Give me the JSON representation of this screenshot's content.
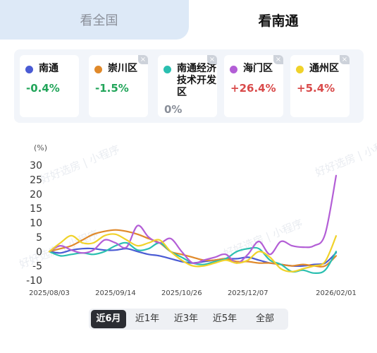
{
  "tabs": {
    "national": "看全国",
    "nantong": "看南通",
    "active": "nantong"
  },
  "cards": [
    {
      "name": "南通",
      "value": "-0.4%",
      "dot_color": "#4a5bd4",
      "value_color": "#22a55a",
      "closable": false
    },
    {
      "name": "崇川区",
      "value": "-1.5%",
      "dot_color": "#e0892a",
      "value_color": "#22a55a",
      "closable": true
    },
    {
      "name": "南通经济技术开发区",
      "value": "0%",
      "dot_color": "#2abfb0",
      "value_color": "#8a8f99",
      "closable": true
    },
    {
      "name": "海门区",
      "value": "+26.4%",
      "dot_color": "#b35ed6",
      "value_color": "#d94a4a",
      "closable": true
    },
    {
      "name": "通州区",
      "value": "+5.4%",
      "dot_color": "#f0d22a",
      "value_color": "#d94a4a",
      "closable": true
    }
  ],
  "close_glyph": "×",
  "watermark": "好好选房 | 小程序",
  "range_buttons": [
    "近6月",
    "近1年",
    "近3年",
    "近5年",
    "全部"
  ],
  "range_active": "近6月",
  "chart_data": {
    "type": "line",
    "ylabel": "(%)",
    "ylim": [
      -10,
      30
    ],
    "yticks": [
      30,
      25,
      20,
      15,
      10,
      5,
      0,
      -5,
      -10
    ],
    "x_tick_labels": [
      "2025/08/03",
      "2025/09/14",
      "2025/10/26",
      "2025/12/07",
      "2026/02/01"
    ],
    "x_tick_positions": [
      0,
      6,
      12,
      18,
      26
    ],
    "grid": false,
    "series": [
      {
        "name": "南通",
        "color": "#4a5bd4",
        "values": [
          0,
          -0.5,
          0.5,
          1,
          1,
          0.5,
          0.5,
          1,
          0,
          -1,
          -1.5,
          -2.5,
          -3.5,
          -4,
          -3.5,
          -3,
          -2.5,
          -2.5,
          -2,
          -3,
          -4,
          -4.5,
          -5,
          -5,
          -4.5,
          -4,
          -0.4
        ]
      },
      {
        "name": "崇川区",
        "color": "#e0892a",
        "values": [
          0,
          1,
          2,
          4,
          6,
          7,
          7.5,
          7,
          6,
          4.5,
          3,
          0,
          -1,
          -2,
          -3,
          -3,
          -2.5,
          -3.5,
          -3.5,
          -4,
          -4,
          -4.5,
          -5,
          -4.5,
          -5,
          -5,
          -1.5
        ]
      },
      {
        "name": "南通经济技术开发区",
        "color": "#2abfb0",
        "values": [
          0,
          -1.5,
          -1,
          -0.5,
          -1,
          0,
          2,
          3,
          0.5,
          1,
          3,
          0,
          -2,
          -4,
          -4.5,
          -3.5,
          -2.5,
          0,
          1,
          1,
          -3,
          -4.5,
          -7,
          -6.5,
          -7.5,
          -6.5,
          0
        ]
      },
      {
        "name": "海门区",
        "color": "#b35ed6",
        "values": [
          0,
          2,
          0.5,
          -0.5,
          0.5,
          4,
          3,
          1.5,
          9,
          5,
          3,
          4.5,
          0,
          -4,
          -3,
          -2,
          -1,
          -4,
          -1,
          3.5,
          -1,
          3.5,
          2,
          1.5,
          2,
          6,
          26.4
        ]
      },
      {
        "name": "通州区",
        "color": "#f0d22a",
        "values": [
          0,
          3,
          5.5,
          3,
          3,
          5.5,
          6,
          4,
          2,
          3,
          4,
          0,
          -3,
          -5,
          -5,
          -4,
          -3,
          -4,
          -3,
          0,
          -2,
          -6,
          -7,
          -6,
          -5,
          -3.5,
          5.4
        ]
      }
    ]
  }
}
